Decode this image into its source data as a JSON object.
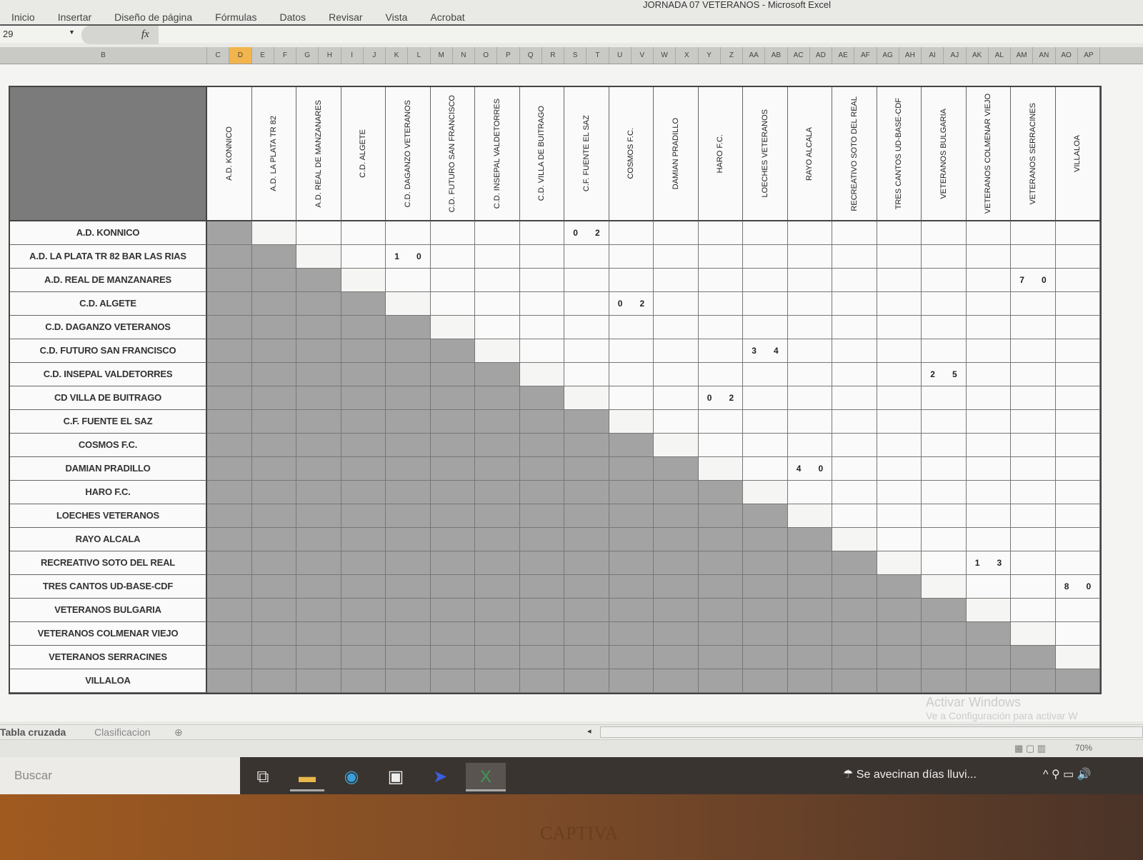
{
  "window": {
    "title": "JORNADA 07 VETERANOS - Microsoft Excel"
  },
  "ribbon": {
    "tabs": [
      "Inicio",
      "Insertar",
      "Diseño de página",
      "Fórmulas",
      "Datos",
      "Revisar",
      "Vista",
      "Acrobat"
    ]
  },
  "formula_bar": {
    "name_box": "29",
    "fx": "fx",
    "value": ""
  },
  "column_letters": [
    "B",
    "C",
    "D",
    "E",
    "F",
    "G",
    "H",
    "I",
    "J",
    "K",
    "L",
    "M",
    "N",
    "O",
    "P",
    "Q",
    "R",
    "S",
    "T",
    "U",
    "V",
    "W",
    "X",
    "Y",
    "Z",
    "AA",
    "AB",
    "AC",
    "AD",
    "AE",
    "AF",
    "AG",
    "AH",
    "AI",
    "AJ",
    "AK",
    "AL",
    "AM",
    "AN",
    "AO",
    "AP"
  ],
  "selected_column": "D",
  "teams_header": [
    "A.D. KONNICO",
    "A.D. LA PLATA TR 82",
    "A.D. REAL DE MANZANARES",
    "C.D. ALGETE",
    "C.D. DAGANZO VETERANOS",
    "C.D. FUTURO SAN FRANCISCO",
    "C.D. INSEPAL VALDETORRES",
    "C.D. VILLA DE BUITRAGO",
    "C.F. FUENTE EL SAZ",
    "COSMOS F.C.",
    "DAMIAN PRADILLO",
    "HARO F.C.",
    "LOECHES VETERANOS",
    "RAYO ALCALA",
    "RECREATIVO SOTO DEL REAL",
    "TRES CANTOS UD-BASE-CDF",
    "VETERANOS BULGARIA",
    "VETERANOS COLMENAR VIEJO",
    "VETERANOS SERRACINES",
    "VILLALOA"
  ],
  "teams_rows": [
    "A.D. KONNICO",
    "A.D. LA PLATA TR 82 BAR LAS RIAS",
    "A.D. REAL DE MANZANARES",
    "C.D. ALGETE",
    "C.D. DAGANZO VETERANOS",
    "C.D. FUTURO SAN FRANCISCO",
    "C.D. INSEPAL VALDETORRES",
    "CD VILLA DE BUITRAGO",
    "C.F. FUENTE EL SAZ",
    "COSMOS F.C.",
    "DAMIAN PRADILLO",
    "HARO F.C.",
    "LOECHES VETERANOS",
    "RAYO ALCALA",
    "RECREATIVO SOTO DEL REAL",
    "TRES CANTOS UD-BASE-CDF",
    "VETERANOS BULGARIA",
    "VETERANOS COLMENAR VIEJO",
    "VETERANOS SERRACINES",
    "VILLALOA"
  ],
  "results": [
    {
      "home": 0,
      "away": 8,
      "score": [
        "0",
        "2"
      ]
    },
    {
      "home": 1,
      "away": 4,
      "score": [
        "1",
        "0"
      ]
    },
    {
      "home": 2,
      "away": 18,
      "score": [
        "7",
        "0"
      ]
    },
    {
      "home": 3,
      "away": 9,
      "score": [
        "0",
        "2"
      ]
    },
    {
      "home": 5,
      "away": 12,
      "score": [
        "3",
        "4"
      ]
    },
    {
      "home": 6,
      "away": 16,
      "score": [
        "2",
        "5"
      ]
    },
    {
      "home": 7,
      "away": 11,
      "score": [
        "0",
        "2"
      ]
    },
    {
      "home": 10,
      "away": 13,
      "score": [
        "4",
        "0"
      ]
    },
    {
      "home": 14,
      "away": 17,
      "score": [
        "1",
        "3"
      ]
    },
    {
      "home": 15,
      "away": 19,
      "score": [
        "8",
        "0"
      ]
    }
  ],
  "sheet_tabs": [
    "Tabla cruzada",
    "Clasificacion"
  ],
  "status": {
    "zoom": "70%"
  },
  "watermark": {
    "line1": "Activar Windows",
    "line2": "Ve a Configuración para activar W"
  },
  "taskbar": {
    "search_placeholder": "Buscar",
    "weather": "Se avecinan días lluvi...",
    "tray": "^ ⚲ ▭ 🔊"
  },
  "bezel_brand": "CAPTIVA"
}
